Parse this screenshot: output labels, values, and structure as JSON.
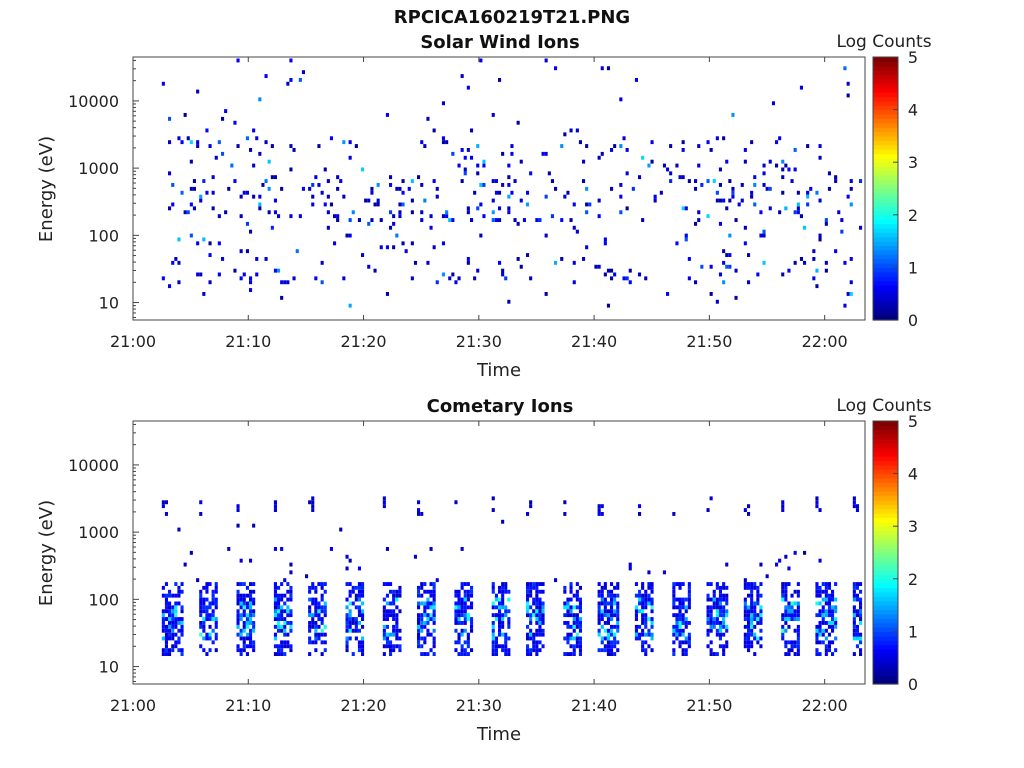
{
  "figure": {
    "title": "RPCICA160219T21.PNG"
  },
  "colormap": {
    "name": "jet",
    "stops": [
      "#00007f",
      "#0000ff",
      "#007fff",
      "#00ffff",
      "#7fff7f",
      "#ffff00",
      "#ff7f00",
      "#ff0000",
      "#7f0000"
    ]
  },
  "chart_data": [
    {
      "type": "heatmap",
      "title": "Solar Wind Ions",
      "xlabel": "Time",
      "ylabel": "Energy (eV)",
      "colorbar_label": "Log Counts",
      "colorbar_ticks": [
        "0",
        "1",
        "2",
        "3",
        "4",
        "5"
      ],
      "colorbar_range": [
        0,
        5
      ],
      "x_tick_labels": [
        "21:00",
        "21:10",
        "21:20",
        "21:30",
        "21:40",
        "21:50",
        "22:00"
      ],
      "x_range_minutes": [
        0,
        63.5
      ],
      "y_scale": "log",
      "y_tick_labels": [
        "10",
        "100",
        "1000",
        "10000"
      ],
      "y_range_ev": [
        5.5,
        45000
      ],
      "grid": false,
      "data_description_minutes_start": 2.5,
      "data_description_minutes_end": 63.2,
      "pattern": "sparse",
      "seed": 7
    },
    {
      "type": "heatmap",
      "title": "Cometary Ions",
      "xlabel": "Time",
      "ylabel": "Energy (eV)",
      "colorbar_label": "Log Counts",
      "colorbar_ticks": [
        "0",
        "1",
        "2",
        "3",
        "4",
        "5"
      ],
      "colorbar_range": [
        0,
        5
      ],
      "x_tick_labels": [
        "21:00",
        "21:10",
        "21:20",
        "21:30",
        "21:40",
        "21:50",
        "22:00"
      ],
      "x_range_minutes": [
        0,
        63.5
      ],
      "y_scale": "log",
      "y_tick_labels": [
        "10",
        "100",
        "1000",
        "10000"
      ],
      "y_range_ev": [
        5.5,
        45000
      ],
      "grid": false,
      "data_description_minutes_start": 2.5,
      "data_description_minutes_end": 63.2,
      "pattern": "periodic",
      "period_minutes": 3.15,
      "seed": 11
    }
  ]
}
